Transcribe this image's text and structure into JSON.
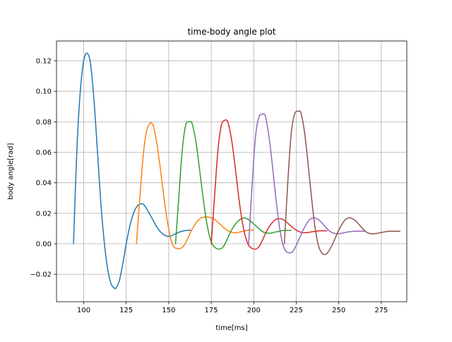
{
  "chart_data": {
    "type": "line",
    "title": "time-body angle plot",
    "xlabel": "time[ms]",
    "ylabel": "body angle[rad]",
    "xlim": [
      84,
      290
    ],
    "ylim": [
      -0.038,
      0.133
    ],
    "xticks": [
      100,
      125,
      150,
      175,
      200,
      225,
      250,
      275
    ],
    "yticks": [
      -0.02,
      0.0,
      0.02,
      0.04,
      0.06,
      0.08,
      0.1,
      0.12
    ],
    "ytick_labels": [
      "−0.02",
      "0.00",
      "0.02",
      "0.04",
      "0.06",
      "0.08",
      "0.10",
      "0.12"
    ],
    "grid": true,
    "legend": null,
    "series": [
      {
        "color": "#1f77b4",
        "x": [
          94,
          96,
          98,
          100,
          102,
          104,
          106,
          108,
          110,
          112,
          114,
          116,
          118,
          119,
          121,
          123,
          125,
          127,
          129,
          131,
          133,
          135,
          137,
          139,
          141,
          143,
          145,
          147,
          149,
          151,
          153,
          155,
          157,
          159,
          161,
          163
        ],
        "y": [
          0.0,
          0.062,
          0.1,
          0.12,
          0.125,
          0.118,
          0.095,
          0.062,
          0.028,
          0.002,
          -0.016,
          -0.026,
          -0.029,
          -0.029,
          -0.024,
          -0.013,
          0.0,
          0.011,
          0.019,
          0.024,
          0.026,
          0.026,
          0.023,
          0.019,
          0.015,
          0.011,
          0.008,
          0.006,
          0.005,
          0.005,
          0.006,
          0.007,
          0.008,
          0.0085,
          0.0088,
          0.0088
        ]
      },
      {
        "color": "#ff7f0e",
        "x": [
          131,
          133,
          135,
          137,
          139,
          140,
          141,
          143,
          145,
          147,
          149,
          151,
          153,
          155,
          157,
          159,
          161,
          163,
          165,
          167,
          169,
          171,
          173,
          175,
          177,
          179,
          181,
          183,
          185,
          187,
          189,
          191,
          193,
          195,
          197,
          200
        ],
        "y": [
          0.0,
          0.03,
          0.058,
          0.074,
          0.079,
          0.079,
          0.077,
          0.066,
          0.05,
          0.032,
          0.016,
          0.004,
          -0.002,
          -0.003,
          -0.003,
          -0.001,
          0.003,
          0.008,
          0.012,
          0.015,
          0.017,
          0.0175,
          0.0175,
          0.017,
          0.016,
          0.014,
          0.012,
          0.01,
          0.0085,
          0.0075,
          0.0072,
          0.0075,
          0.008,
          0.0085,
          0.009,
          0.009
        ]
      },
      {
        "color": "#2ca02c",
        "x": [
          154,
          156,
          158,
          160,
          162,
          163,
          164,
          166,
          168,
          170,
          172,
          174,
          176,
          178,
          180,
          182,
          184,
          186,
          188,
          190,
          192,
          194,
          196,
          198,
          200,
          202,
          204,
          206,
          208,
          210,
          212,
          214,
          216,
          218,
          220,
          222
        ],
        "y": [
          0.0,
          0.032,
          0.062,
          0.078,
          0.08,
          0.08,
          0.078,
          0.067,
          0.05,
          0.032,
          0.016,
          0.005,
          -0.001,
          -0.003,
          -0.0035,
          -0.002,
          0.002,
          0.007,
          0.011,
          0.014,
          0.016,
          0.017,
          0.0165,
          0.015,
          0.013,
          0.011,
          0.009,
          0.0075,
          0.007,
          0.007,
          0.0075,
          0.008,
          0.0085,
          0.0088,
          0.0088,
          0.0088
        ]
      },
      {
        "color": "#d62728",
        "x": [
          175,
          177,
          179,
          181,
          183,
          184,
          185,
          187,
          189,
          191,
          193,
          195,
          197,
          199,
          201,
          203,
          205,
          207,
          209,
          211,
          213,
          215,
          217,
          219,
          221,
          223,
          225,
          227,
          229,
          231,
          233,
          235,
          237,
          239,
          241,
          243
        ],
        "y": [
          0.0,
          0.032,
          0.062,
          0.078,
          0.081,
          0.081,
          0.079,
          0.068,
          0.051,
          0.032,
          0.016,
          0.005,
          -0.001,
          -0.003,
          -0.0035,
          -0.002,
          0.002,
          0.007,
          0.011,
          0.014,
          0.016,
          0.0165,
          0.016,
          0.0145,
          0.0125,
          0.0105,
          0.009,
          0.0078,
          0.0073,
          0.0073,
          0.0076,
          0.008,
          0.0083,
          0.0085,
          0.0085,
          0.0085
        ]
      },
      {
        "color": "#9467bd",
        "x": [
          197,
          199,
          201,
          203,
          205,
          206,
          207,
          209,
          211,
          213,
          215,
          217,
          219,
          221,
          223,
          225,
          227,
          229,
          231,
          233,
          235,
          237,
          239,
          241,
          243,
          245,
          247,
          249,
          251,
          253,
          255,
          257,
          259,
          261,
          263,
          265
        ],
        "y": [
          0.0,
          0.038,
          0.07,
          0.083,
          0.085,
          0.085,
          0.083,
          0.07,
          0.051,
          0.03,
          0.012,
          0.0,
          -0.005,
          -0.006,
          -0.005,
          -0.001,
          0.004,
          0.009,
          0.013,
          0.016,
          0.017,
          0.0165,
          0.015,
          0.0125,
          0.01,
          0.008,
          0.007,
          0.0065,
          0.0068,
          0.0072,
          0.0077,
          0.008,
          0.0082,
          0.0083,
          0.0083,
          0.0083
        ]
      },
      {
        "color": "#8c564b",
        "x": [
          218,
          220,
          222,
          224,
          226,
          227,
          228,
          230,
          232,
          234,
          236,
          238,
          240,
          242,
          244,
          246,
          248,
          250,
          252,
          254,
          256,
          258,
          260,
          262,
          264,
          266,
          268,
          270,
          272,
          274,
          276,
          278,
          280,
          282,
          284,
          286
        ],
        "y": [
          0.0,
          0.04,
          0.072,
          0.085,
          0.087,
          0.087,
          0.085,
          0.072,
          0.052,
          0.03,
          0.011,
          -0.001,
          -0.006,
          -0.007,
          -0.005,
          -0.001,
          0.004,
          0.009,
          0.013,
          0.016,
          0.017,
          0.0165,
          0.015,
          0.0125,
          0.01,
          0.0078,
          0.0068,
          0.0065,
          0.0067,
          0.0072,
          0.0076,
          0.008,
          0.0082,
          0.0082,
          0.0082,
          0.0082
        ]
      }
    ]
  }
}
